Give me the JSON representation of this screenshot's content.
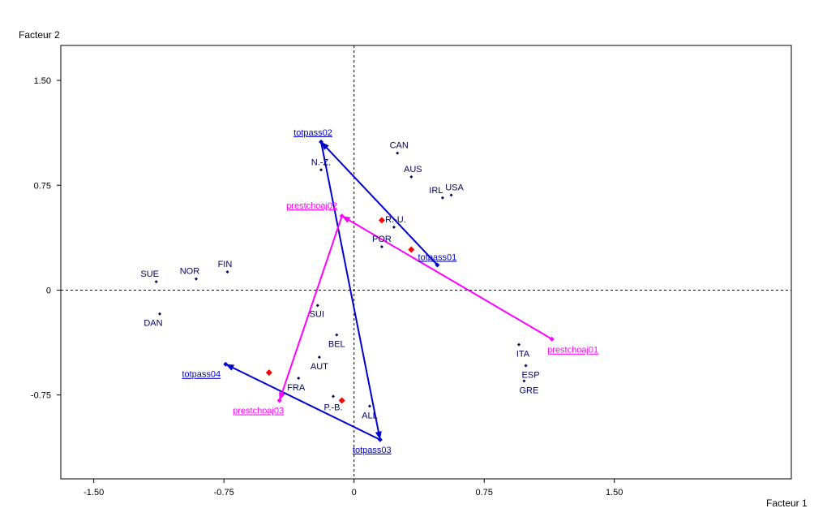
{
  "chart_data": {
    "type": "scatter",
    "xlabel": "Facteur 1",
    "ylabel": "Facteur 2",
    "xlim": [
      -1.69,
      2.52
    ],
    "ylim": [
      -1.35,
      1.75
    ],
    "x_ticks": [
      -1.5,
      -0.75,
      0,
      0.75,
      1.5
    ],
    "x_tick_labels": [
      "-1.50",
      "-0.75",
      "0",
      "0.75",
      "1.50"
    ],
    "y_ticks": [
      1.5,
      0.75,
      0,
      -0.75
    ],
    "y_tick_labels": [
      "1.50",
      "0.75",
      "0",
      "-0.75"
    ],
    "reference_lines": [
      "x = 0 (dashed)",
      "y = 0 (dashed)"
    ],
    "colors": {
      "points": "#000060",
      "totpass": "#0000cc",
      "prestchoaj": "#ff00ff",
      "centroids": "#ff0000"
    },
    "points": [
      {
        "label": "CAN",
        "x": 0.25,
        "y": 0.98
      },
      {
        "label": "AUS",
        "x": 0.33,
        "y": 0.81
      },
      {
        "label": "IRL",
        "x": 0.51,
        "y": 0.66
      },
      {
        "label": "USA",
        "x": 0.56,
        "y": 0.68
      },
      {
        "label": "N.-Z.",
        "x": -0.19,
        "y": 0.86
      },
      {
        "label": "R.-U.",
        "x": 0.23,
        "y": 0.45
      },
      {
        "label": "POR",
        "x": 0.16,
        "y": 0.31
      },
      {
        "label": "SUE",
        "x": -1.14,
        "y": 0.06
      },
      {
        "label": "NOR",
        "x": -0.91,
        "y": 0.08
      },
      {
        "label": "FIN",
        "x": -0.73,
        "y": 0.13
      },
      {
        "label": "DAN",
        "x": -1.12,
        "y": -0.17
      },
      {
        "label": "SUI",
        "x": -0.21,
        "y": -0.11
      },
      {
        "label": "BEL",
        "x": -0.1,
        "y": -0.32
      },
      {
        "label": "AUT",
        "x": -0.2,
        "y": -0.48
      },
      {
        "label": "FRA",
        "x": -0.32,
        "y": -0.63
      },
      {
        "label": "P.-B.",
        "x": -0.12,
        "y": -0.76
      },
      {
        "label": "ALL",
        "x": 0.09,
        "y": -0.83
      },
      {
        "label": "ITA",
        "x": 0.95,
        "y": -0.39
      },
      {
        "label": "ESP",
        "x": 0.99,
        "y": -0.54
      },
      {
        "label": "GRE",
        "x": 0.98,
        "y": -0.65
      }
    ],
    "centroids": [
      {
        "x": 0.16,
        "y": 0.5
      },
      {
        "x": 0.33,
        "y": 0.29
      },
      {
        "x": -0.49,
        "y": -0.59
      },
      {
        "x": -0.07,
        "y": -0.79
      }
    ],
    "trajectories": [
      {
        "color": "#0000cc",
        "points": [
          {
            "label": "totpass01",
            "x": 0.48,
            "y": 0.18
          },
          {
            "label": "totpass02",
            "x": -0.19,
            "y": 1.06
          },
          {
            "label": "totpass03",
            "x": 0.15,
            "y": -1.07
          },
          {
            "label": "totpass04",
            "x": -0.74,
            "y": -0.53
          }
        ]
      },
      {
        "color": "#ff00ff",
        "points": [
          {
            "label": "prestchoaj01",
            "x": 1.14,
            "y": -0.35
          },
          {
            "label": "prestchoaj02",
            "x": -0.07,
            "y": 0.53
          },
          {
            "label": "prestchoaj03",
            "x": -0.43,
            "y": -0.79
          }
        ]
      }
    ]
  }
}
